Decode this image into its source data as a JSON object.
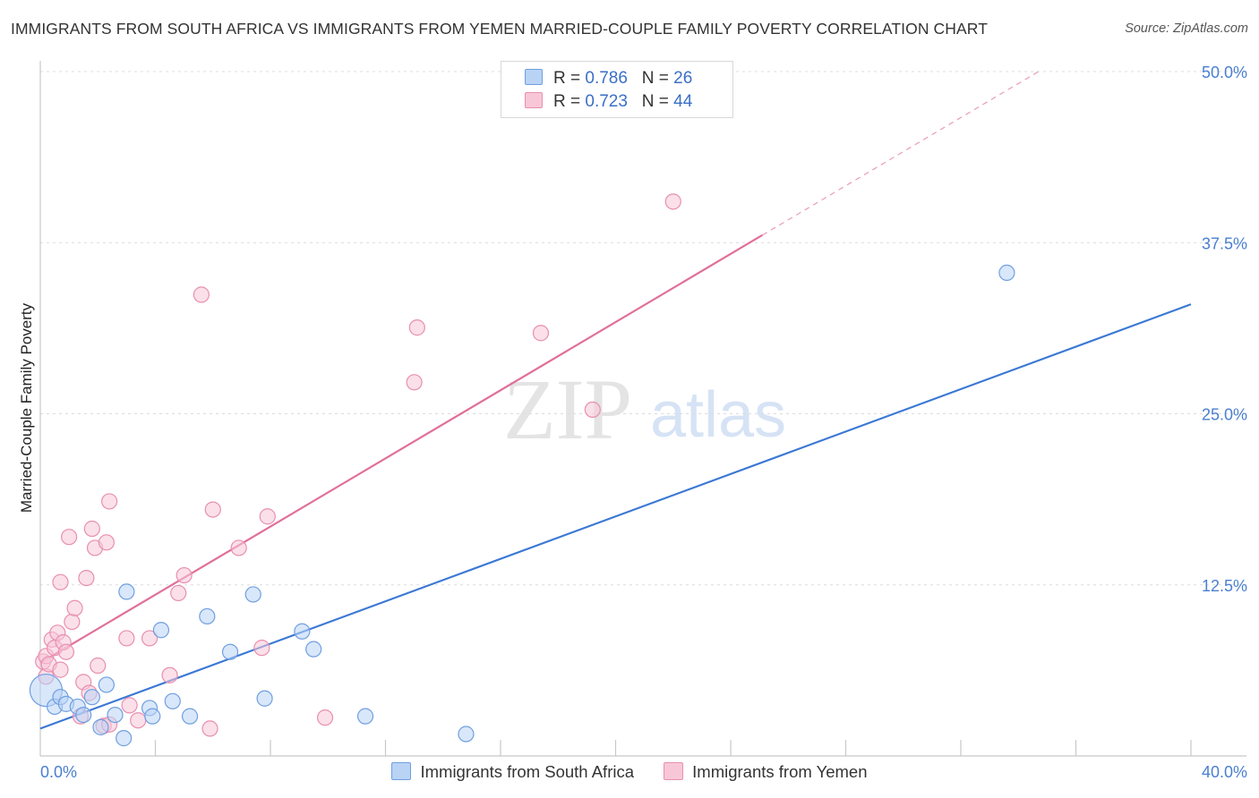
{
  "title": "IMMIGRANTS FROM SOUTH AFRICA VS IMMIGRANTS FROM YEMEN MARRIED-COUPLE FAMILY POVERTY CORRELATION CHART",
  "source": "Source: ZipAtlas.com",
  "watermark": {
    "zip": "ZIP",
    "atlas": "atlas"
  },
  "colors": {
    "blue": "#3b78d4",
    "blue_fill": "#b9d3f5",
    "pink": "#e0709a",
    "pink_fill": "#f8c7d7",
    "tick": "#4a7fd0"
  },
  "legend": {
    "series1": {
      "r_label": "R = ",
      "r_value": "0.786",
      "n_label": "N = ",
      "n_value": "26"
    },
    "series2": {
      "r_label": "R = ",
      "r_value": "0.723",
      "n_label": "N = ",
      "n_value": "44"
    }
  },
  "chart_data": {
    "type": "scatter",
    "xlabel": "",
    "ylabel": "Married-Couple Family Poverty",
    "xlim": [
      0,
      40
    ],
    "ylim": [
      0,
      50
    ],
    "x_tick_labels": [
      "0.0%",
      "40.0%"
    ],
    "y_ticks": [
      12.5,
      25.0,
      37.5,
      50.0
    ],
    "y_tick_labels": [
      "12.5%",
      "25.0%",
      "37.5%",
      "50.0%"
    ],
    "grid": true,
    "series": [
      {
        "name": "Immigrants from South Africa",
        "color": "#3b78d4",
        "trend": {
          "x1": 0,
          "y1": 2.0,
          "x2": 40,
          "y2": 33.0,
          "solid_to": 40
        },
        "points": [
          [
            0.2,
            4.8
          ],
          [
            0.5,
            3.6
          ],
          [
            0.7,
            4.3
          ],
          [
            0.9,
            3.8
          ],
          [
            1.3,
            3.6
          ],
          [
            1.5,
            3.0
          ],
          [
            1.8,
            4.3
          ],
          [
            2.1,
            2.1
          ],
          [
            2.3,
            5.2
          ],
          [
            2.6,
            3.0
          ],
          [
            2.9,
            1.3
          ],
          [
            3.0,
            12.0
          ],
          [
            3.8,
            3.5
          ],
          [
            3.9,
            2.9
          ],
          [
            4.2,
            9.2
          ],
          [
            4.6,
            4.0
          ],
          [
            5.2,
            2.9
          ],
          [
            5.8,
            10.2
          ],
          [
            6.6,
            7.6
          ],
          [
            7.4,
            11.8
          ],
          [
            7.8,
            4.2
          ],
          [
            9.1,
            9.1
          ],
          [
            9.5,
            7.8
          ],
          [
            11.3,
            2.9
          ],
          [
            14.8,
            1.6
          ],
          [
            33.6,
            35.3
          ]
        ]
      },
      {
        "name": "Immigrants from Yemen",
        "color": "#e0709a",
        "trend": {
          "x1": 0,
          "y1": 6.8,
          "x2": 34.7,
          "y2": 50.0,
          "solid_to": 25.1
        },
        "points": [
          [
            0.1,
            6.9
          ],
          [
            0.2,
            7.3
          ],
          [
            0.2,
            5.8
          ],
          [
            0.3,
            6.7
          ],
          [
            0.4,
            8.5
          ],
          [
            0.5,
            7.9
          ],
          [
            0.6,
            9.0
          ],
          [
            0.7,
            6.3
          ],
          [
            0.7,
            12.7
          ],
          [
            0.8,
            8.3
          ],
          [
            0.9,
            7.6
          ],
          [
            1.0,
            16.0
          ],
          [
            1.1,
            9.8
          ],
          [
            1.2,
            10.8
          ],
          [
            1.4,
            2.9
          ],
          [
            1.5,
            5.4
          ],
          [
            1.6,
            13.0
          ],
          [
            1.7,
            4.6
          ],
          [
            1.8,
            16.6
          ],
          [
            1.9,
            15.2
          ],
          [
            2.0,
            6.6
          ],
          [
            2.2,
            2.2
          ],
          [
            2.3,
            15.6
          ],
          [
            2.4,
            18.6
          ],
          [
            2.4,
            2.3
          ],
          [
            3.0,
            8.6
          ],
          [
            3.1,
            3.7
          ],
          [
            3.4,
            2.6
          ],
          [
            3.8,
            8.6
          ],
          [
            4.5,
            5.9
          ],
          [
            4.8,
            11.9
          ],
          [
            5.0,
            13.2
          ],
          [
            5.6,
            33.7
          ],
          [
            5.9,
            2.0
          ],
          [
            6.0,
            18.0
          ],
          [
            6.9,
            15.2
          ],
          [
            7.7,
            7.9
          ],
          [
            7.9,
            17.5
          ],
          [
            9.9,
            2.8
          ],
          [
            13.0,
            27.3
          ],
          [
            13.1,
            31.3
          ],
          [
            17.4,
            30.9
          ],
          [
            19.2,
            25.3
          ],
          [
            22.0,
            40.5
          ]
        ]
      }
    ]
  }
}
